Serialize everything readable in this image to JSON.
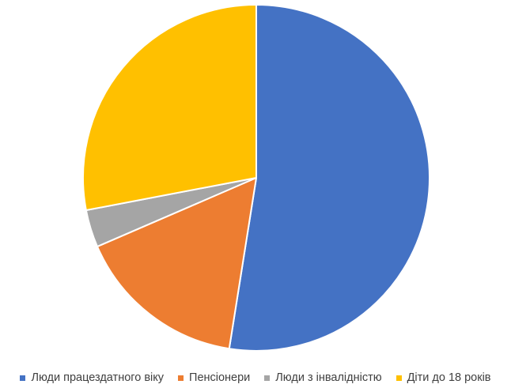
{
  "chart_data": {
    "type": "pie",
    "title": "",
    "categories": [
      "Люди працездатного віку",
      "Пенсіонери",
      "Люди з інвалідністю",
      "Діти до 18 років"
    ],
    "values": [
      52.5,
      16.0,
      3.5,
      28.0
    ],
    "unit": "%",
    "colors": [
      "#4472C4",
      "#ED7D31",
      "#A5A5A5",
      "#FFC000"
    ],
    "start_angle_deg": 0,
    "direction": "clockwise",
    "legend_position": "bottom"
  }
}
